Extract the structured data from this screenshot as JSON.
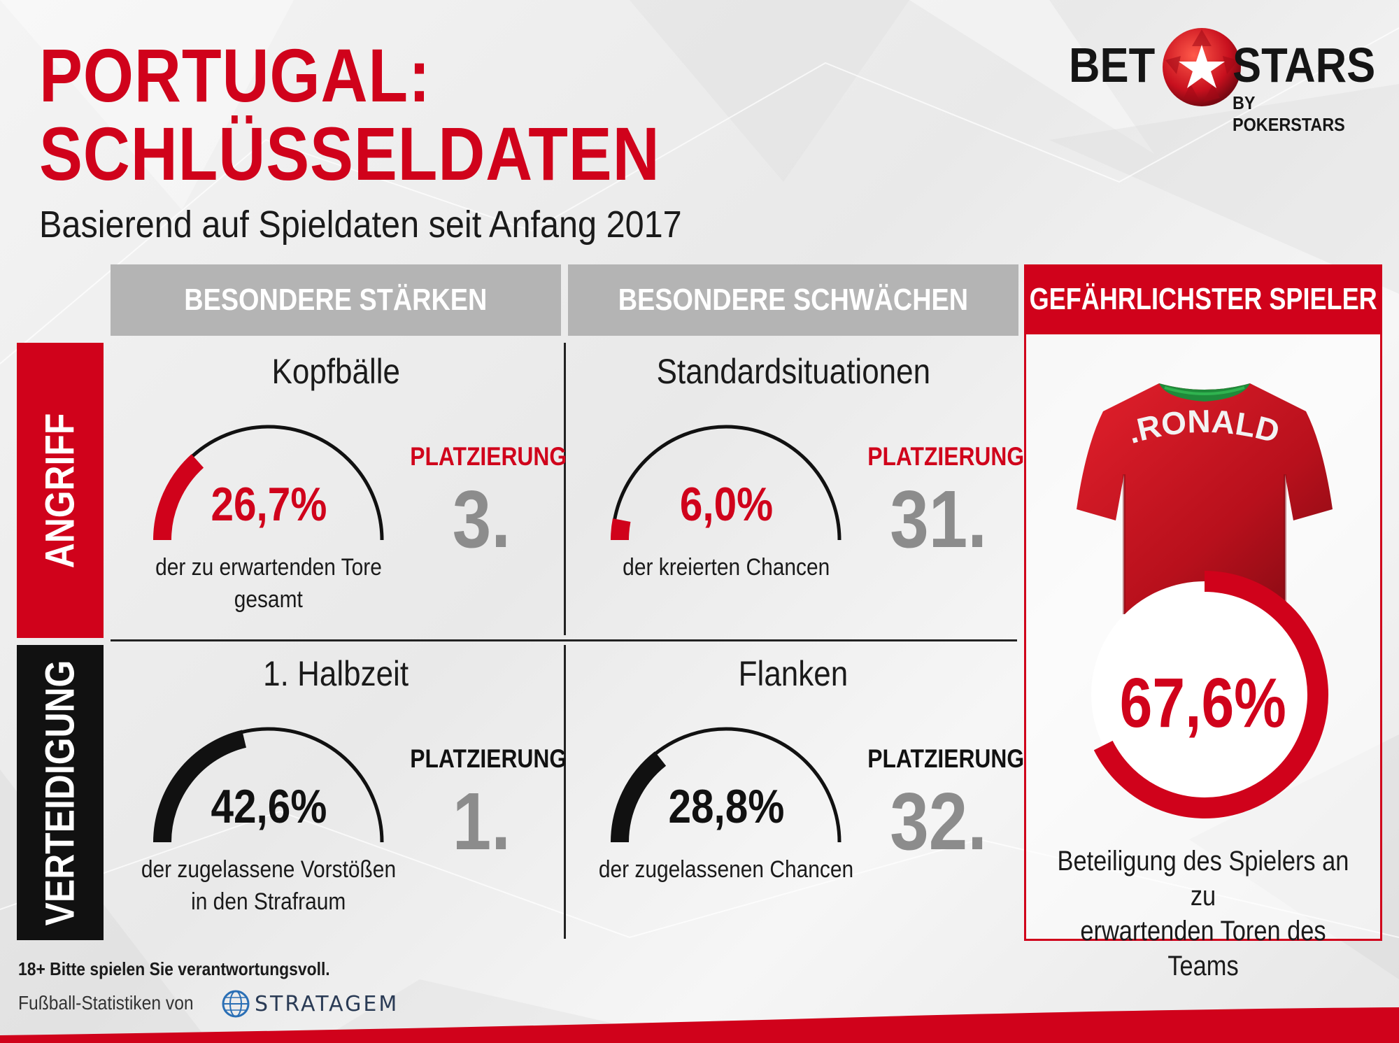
{
  "header": {
    "title_line1": "PORTUGAL:",
    "title_line2": "SCHLÜSSELDATEN",
    "subtitle": "Basierend auf Spieldaten seit Anfang 2017"
  },
  "logo": {
    "word1": "BET",
    "word2": "STARS",
    "tagline": "BY POKERSTARS"
  },
  "columns": {
    "strengths": "BESONDERE STÄRKEN",
    "weaknesses": "BESONDERE SCHWÄCHEN",
    "player": "GEFÄHRLICHSTER SPIELER"
  },
  "rows": {
    "attack": "ANGRIFF",
    "defense": "VERTEIDIGUNG"
  },
  "cells": [
    {
      "title": "Kopfbälle",
      "value": "26,7%",
      "fraction": 0.267,
      "desc1": "der zu erwartenden Tore",
      "desc2": "gesamt",
      "rank_label": "PLATZIERUNG",
      "rank": "3.",
      "color": "#d0021b"
    },
    {
      "title": "Standardsituationen",
      "value": "6,0%",
      "fraction": 0.06,
      "desc1": "der kreierten Chancen",
      "desc2": "",
      "rank_label": "PLATZIERUNG",
      "rank": "31.",
      "color": "#d0021b"
    },
    {
      "title": "1. Halbzeit",
      "value": "42,6%",
      "fraction": 0.426,
      "desc1": "der zugelassene Vorstößen",
      "desc2": "in den Strafraum",
      "rank_label": "PLATZIERUNG",
      "rank": "1.",
      "color": "#111111"
    },
    {
      "title": "Flanken",
      "value": "28,8%",
      "fraction": 0.288,
      "desc1": "der zugelassenen Chancen",
      "desc2": "",
      "rank_label": "PLATZIERUNG",
      "rank": "32.",
      "color": "#111111"
    }
  ],
  "player": {
    "shirt_name": "C.RONALDO",
    "value": "67,6%",
    "fraction": 0.676,
    "desc1": "Beteiligung des Spielers an zu",
    "desc2": "erwartenden Toren des Teams"
  },
  "footer": {
    "disclaimer": "18+ Bitte spielen Sie verantwortungsvoll.",
    "source": "Fußball-Statistiken von",
    "source_brand": "STRATAGEM"
  },
  "colors": {
    "accent": "#d0021b",
    "dark": "#111111",
    "header_gray": "#b4b4b4",
    "rank_gray": "#8c8c8c"
  },
  "icons": {
    "logo": "soccer-ball-star-icon",
    "source": "globe-icon"
  }
}
